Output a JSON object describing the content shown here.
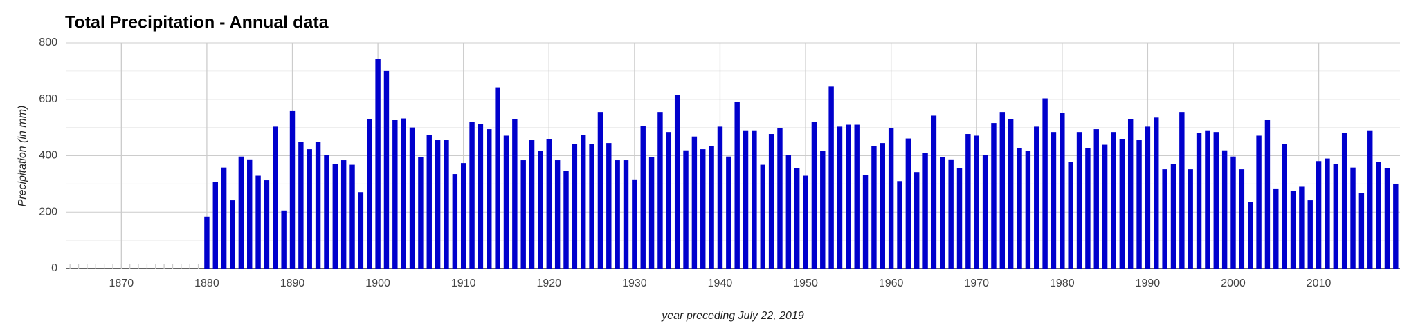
{
  "chart_data": {
    "type": "bar",
    "title": "Total Precipitation - Annual data",
    "x_label": "year preceding July 22, 2019",
    "y_label": "Precipitation (in mm)",
    "color": "#0000cc",
    "grid": true,
    "minor_grid": true,
    "xlim": [
      1863.5,
      2019.5
    ],
    "xticks": [
      1870,
      1880,
      1890,
      1900,
      1910,
      1920,
      1930,
      1940,
      1950,
      1960,
      1970,
      1980,
      1990,
      2000,
      2010
    ],
    "ylim": [
      0,
      800
    ],
    "yticks": [
      0,
      200,
      400,
      600,
      800
    ],
    "x": [
      1864,
      1865,
      1866,
      1867,
      1868,
      1869,
      1870,
      1871,
      1872,
      1873,
      1874,
      1875,
      1876,
      1877,
      1878,
      1879,
      1880,
      1881,
      1882,
      1883,
      1884,
      1885,
      1886,
      1887,
      1888,
      1889,
      1890,
      1891,
      1892,
      1893,
      1894,
      1895,
      1896,
      1897,
      1898,
      1899,
      1900,
      1901,
      1902,
      1903,
      1904,
      1905,
      1906,
      1907,
      1908,
      1909,
      1910,
      1911,
      1912,
      1913,
      1914,
      1915,
      1916,
      1917,
      1918,
      1919,
      1920,
      1921,
      1922,
      1923,
      1924,
      1925,
      1926,
      1927,
      1928,
      1929,
      1930,
      1931,
      1932,
      1933,
      1934,
      1935,
      1936,
      1937,
      1938,
      1939,
      1940,
      1941,
      1942,
      1943,
      1944,
      1945,
      1946,
      1947,
      1948,
      1949,
      1950,
      1951,
      1952,
      1953,
      1954,
      1955,
      1956,
      1957,
      1958,
      1959,
      1960,
      1961,
      1962,
      1963,
      1964,
      1965,
      1966,
      1967,
      1968,
      1969,
      1970,
      1971,
      1972,
      1973,
      1974,
      1975,
      1976,
      1977,
      1978,
      1979,
      1980,
      1981,
      1982,
      1983,
      1984,
      1985,
      1986,
      1987,
      1988,
      1989,
      1990,
      1991,
      1992,
      1993,
      1994,
      1995,
      1996,
      1997,
      1998,
      1999,
      2000,
      2001,
      2002,
      2003,
      2004,
      2005,
      2006,
      2007,
      2008,
      2009,
      2010,
      2011,
      2012,
      2013,
      2014,
      2015,
      2016,
      2017,
      2018,
      2019
    ],
    "values": [
      0,
      0,
      0,
      0,
      0,
      0,
      0,
      0,
      0,
      0,
      0,
      0,
      0,
      0,
      0,
      0,
      184,
      306,
      358,
      242,
      397,
      387,
      329,
      313,
      503,
      206,
      558,
      448,
      423,
      448,
      403,
      371,
      384,
      368,
      271,
      529,
      742,
      700,
      526,
      532,
      500,
      394,
      474,
      455,
      455,
      335,
      374,
      519,
      513,
      494,
      642,
      471,
      529,
      384,
      455,
      416,
      458,
      384,
      345,
      442,
      474,
      442,
      555,
      445,
      384,
      384,
      316,
      506,
      394,
      555,
      484,
      616,
      419,
      468,
      423,
      435,
      503,
      397,
      590,
      490,
      490,
      368,
      477,
      497,
      403,
      355,
      329,
      519,
      416,
      645,
      503,
      510,
      510,
      332,
      435,
      445,
      497,
      310,
      461,
      342,
      410,
      542,
      394,
      387,
      355,
      477,
      471,
      403,
      516,
      555,
      529,
      426,
      416,
      503,
      603,
      484,
      552,
      377,
      484,
      426,
      494,
      439,
      484,
      458,
      529,
      455,
      503,
      535,
      352,
      371,
      555,
      352,
      481,
      490,
      484,
      419,
      397,
      352,
      235,
      471,
      526,
      284,
      442,
      274,
      290,
      242,
      381,
      390,
      371,
      481,
      358,
      268,
      490,
      377,
      355,
      300
    ]
  }
}
